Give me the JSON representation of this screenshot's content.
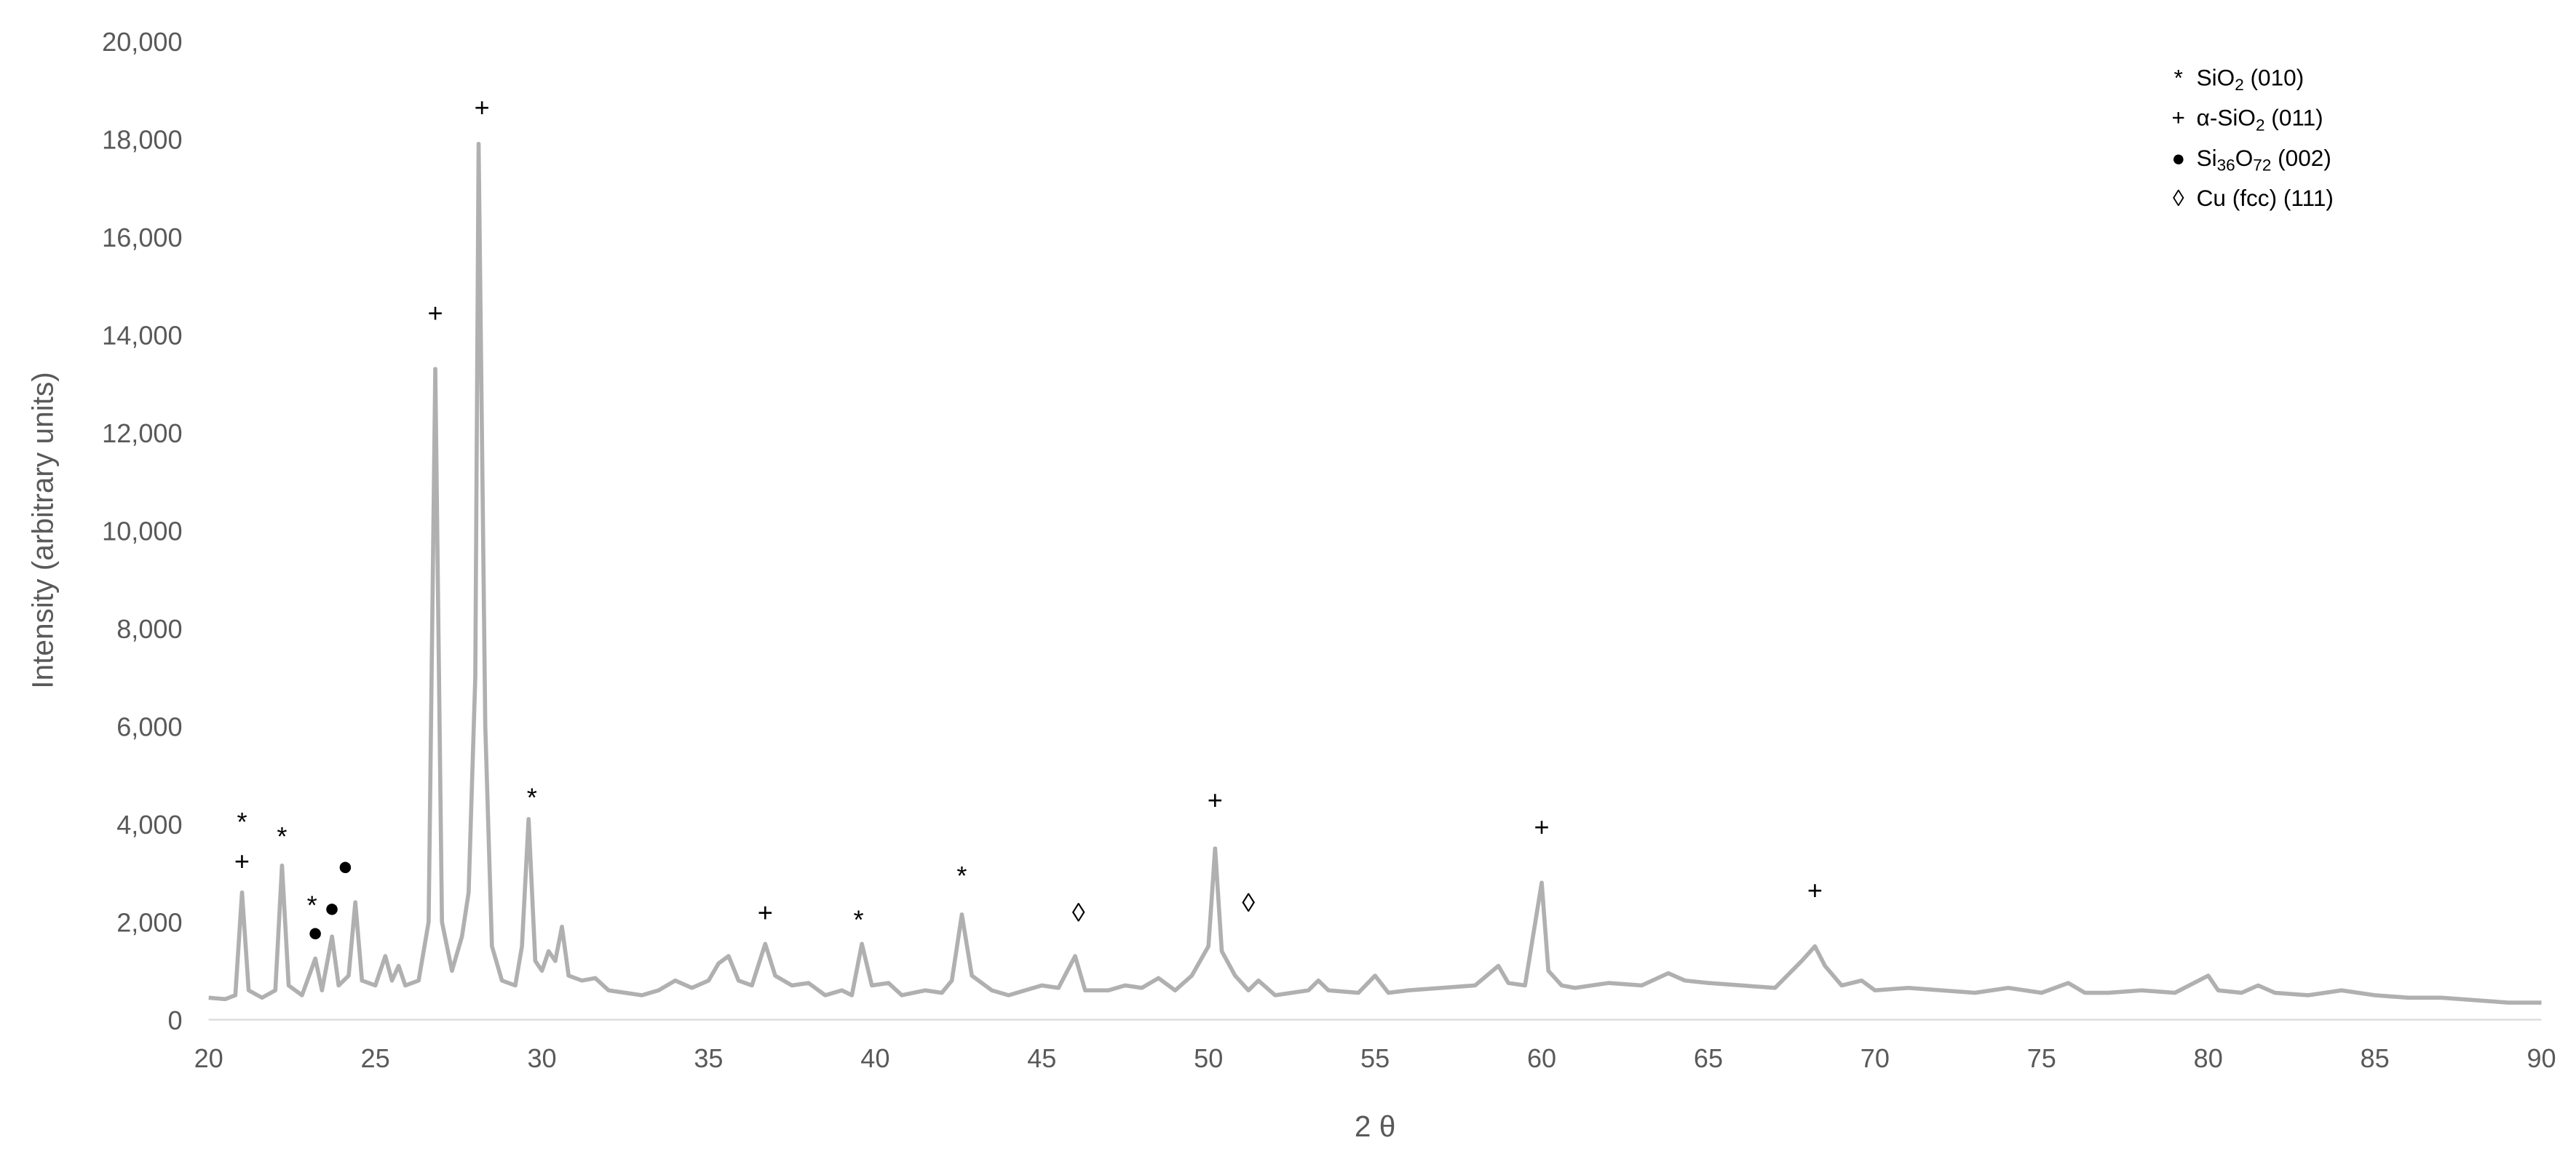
{
  "chart_data": {
    "type": "line",
    "x_label": "2 θ",
    "y_label": "Intensity (arbitrary units)",
    "color": "#b0b0b0",
    "xlim": [
      20,
      90
    ],
    "xticks": [
      20,
      25,
      30,
      35,
      40,
      45,
      50,
      55,
      60,
      65,
      70,
      75,
      80,
      85,
      90
    ],
    "ylim": [
      0,
      20000
    ],
    "yticks": [
      0,
      {
        "value": 2000,
        "label": "2,000"
      },
      {
        "value": 4000,
        "label": "4,000"
      },
      {
        "value": 6000,
        "label": "6,000"
      },
      {
        "value": 8000,
        "label": "8,000"
      },
      {
        "value": 10000,
        "label": "10,000"
      },
      {
        "value": 12000,
        "label": "12,000"
      },
      {
        "value": 14000,
        "label": "14,000"
      },
      {
        "value": 16000,
        "label": "16,000"
      },
      {
        "value": 18000,
        "label": "18,000"
      },
      {
        "value": 20000,
        "label": "20,000"
      }
    ],
    "x": [
      20,
      20.5,
      20.8,
      21.0,
      21.2,
      21.6,
      22.0,
      22.2,
      22.4,
      22.8,
      23.2,
      23.4,
      23.7,
      23.9,
      24.2,
      24.4,
      24.6,
      25.0,
      25.3,
      25.5,
      25.7,
      25.9,
      26.3,
      26.6,
      26.8,
      27.0,
      27.3,
      27.6,
      27.8,
      28.0,
      28.1,
      28.3,
      28.5,
      28.8,
      29.2,
      29.4,
      29.6,
      29.8,
      30.0,
      30.2,
      30.4,
      30.6,
      30.8,
      31.2,
      31.6,
      32,
      32.5,
      33,
      33.5,
      34,
      34.5,
      35,
      35.3,
      35.6,
      35.9,
      36.3,
      36.7,
      37,
      37.5,
      38,
      38.5,
      39,
      39.3,
      39.6,
      39.9,
      40.4,
      40.8,
      41.5,
      42,
      42.3,
      42.6,
      42.9,
      43.5,
      44,
      44.5,
      45,
      45.5,
      46,
      46.3,
      47,
      47.5,
      48,
      48.5,
      49,
      49.5,
      50,
      50.2,
      50.4,
      50.8,
      51.2,
      51.5,
      52,
      52.5,
      53,
      53.3,
      53.6,
      54.5,
      55,
      55.4,
      56,
      57,
      58,
      58.7,
      59,
      59.5,
      60,
      60.2,
      60.6,
      61,
      62,
      63,
      63.8,
      64.3,
      65,
      66,
      67,
      67.8,
      68.2,
      68.5,
      69,
      69.6,
      70,
      71,
      72,
      73,
      74,
      75,
      75.8,
      76.3,
      77,
      78,
      79,
      80,
      80.3,
      81,
      81.5,
      82,
      83,
      84,
      85,
      86,
      87,
      88,
      89,
      90
    ],
    "values": [
      450,
      420,
      500,
      2600,
      600,
      450,
      600,
      3150,
      700,
      500,
      1250,
      600,
      1700,
      700,
      900,
      2400,
      800,
      700,
      1300,
      800,
      1100,
      700,
      800,
      2000,
      13300,
      2000,
      1000,
      1700,
      2600,
      7000,
      17900,
      6000,
      1500,
      800,
      700,
      1500,
      4100,
      1200,
      1000,
      1400,
      1200,
      1900,
      900,
      800,
      850,
      600,
      550,
      500,
      600,
      800,
      650,
      800,
      1150,
      1300,
      800,
      700,
      1550,
      900,
      700,
      750,
      500,
      600,
      500,
      1550,
      700,
      750,
      500,
      600,
      550,
      800,
      2150,
      900,
      600,
      500,
      600,
      700,
      650,
      1300,
      600,
      600,
      700,
      650,
      850,
      600,
      900,
      1500,
      3500,
      1400,
      900,
      600,
      800,
      500,
      550,
      600,
      800,
      600,
      550,
      900,
      550,
      600,
      650,
      700,
      1100,
      750,
      700,
      2800,
      1000,
      700,
      650,
      750,
      700,
      950,
      800,
      750,
      700,
      650,
      1200,
      1500,
      1100,
      700,
      800,
      600,
      650,
      600,
      550,
      650,
      550,
      750,
      550,
      550,
      600,
      550,
      900,
      600,
      550,
      700,
      550,
      500,
      600,
      500,
      450,
      450,
      400,
      350,
      350
    ],
    "annotations": [
      {
        "text": "*",
        "x": 21.0,
        "y": 4000
      },
      {
        "text": "+",
        "x": 21.0,
        "y": 3200
      },
      {
        "text": "*",
        "x": 22.2,
        "y": 3700
      },
      {
        "text": "*",
        "x": 23.1,
        "y": 2300
      },
      {
        "text": "●",
        "x": 23.2,
        "y": 1750
      },
      {
        "text": "●",
        "x": 23.7,
        "y": 2250
      },
      {
        "text": "●",
        "x": 24.1,
        "y": 3100
      },
      {
        "text": "+",
        "x": 26.8,
        "y": 14400
      },
      {
        "text": "+",
        "x": 28.2,
        "y": 18600
      },
      {
        "text": "*",
        "x": 29.7,
        "y": 4500
      },
      {
        "text": "+",
        "x": 36.7,
        "y": 2150
      },
      {
        "text": "*",
        "x": 39.5,
        "y": 2000
      },
      {
        "text": "*",
        "x": 42.6,
        "y": 2900
      },
      {
        "text": "◊",
        "x": 46.1,
        "y": 2150
      },
      {
        "text": "+",
        "x": 50.2,
        "y": 4450
      },
      {
        "text": "◊",
        "x": 51.2,
        "y": 2350
      },
      {
        "text": "+",
        "x": 60.0,
        "y": 3900
      },
      {
        "text": "+",
        "x": 68.2,
        "y": 2600
      }
    ],
    "legend": [
      {
        "symbol": "*",
        "parts": [
          "SiO",
          "2",
          " (010)"
        ]
      },
      {
        "symbol": "+",
        "parts": [
          "α-SiO",
          "2",
          " (011)"
        ]
      },
      {
        "symbol": "●",
        "parts": [
          "Si",
          "36",
          "O",
          "72",
          " (002)"
        ]
      },
      {
        "symbol": "◊",
        "parts": [
          "Cu (fcc) (111)"
        ]
      }
    ]
  }
}
